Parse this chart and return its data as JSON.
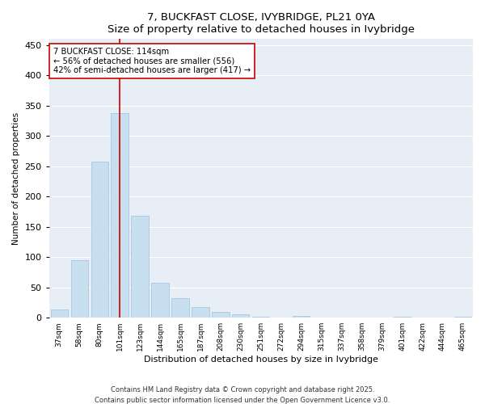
{
  "title": "7, BUCKFAST CLOSE, IVYBRIDGE, PL21 0YA",
  "subtitle": "Size of property relative to detached houses in Ivybridge",
  "xlabel": "Distribution of detached houses by size in Ivybridge",
  "ylabel": "Number of detached properties",
  "bar_color": "#c8dff0",
  "bar_edge_color": "#a0c0de",
  "annotation_line_color": "#cc0000",
  "annotation_text": "7 BUCKFAST CLOSE: 114sqm\n← 56% of detached houses are smaller (556)\n42% of semi-detached houses are larger (417) →",
  "categories": [
    "37sqm",
    "58sqm",
    "80sqm",
    "101sqm",
    "123sqm",
    "144sqm",
    "165sqm",
    "187sqm",
    "208sqm",
    "230sqm",
    "251sqm",
    "272sqm",
    "294sqm",
    "315sqm",
    "337sqm",
    "358sqm",
    "379sqm",
    "401sqm",
    "422sqm",
    "444sqm",
    "465sqm"
  ],
  "values": [
    13,
    95,
    258,
    338,
    168,
    57,
    32,
    17,
    10,
    5,
    2,
    0,
    3,
    0,
    0,
    0,
    0,
    1,
    0,
    0,
    1
  ],
  "ylim": [
    0,
    460
  ],
  "yticks": [
    0,
    50,
    100,
    150,
    200,
    250,
    300,
    350,
    400,
    450
  ],
  "vline_x_index": 3,
  "footer1": "Contains HM Land Registry data © Crown copyright and database right 2025.",
  "footer2": "Contains public sector information licensed under the Open Government Licence v3.0.",
  "background_color": "#ffffff",
  "plot_background_color": "#e8eef5"
}
